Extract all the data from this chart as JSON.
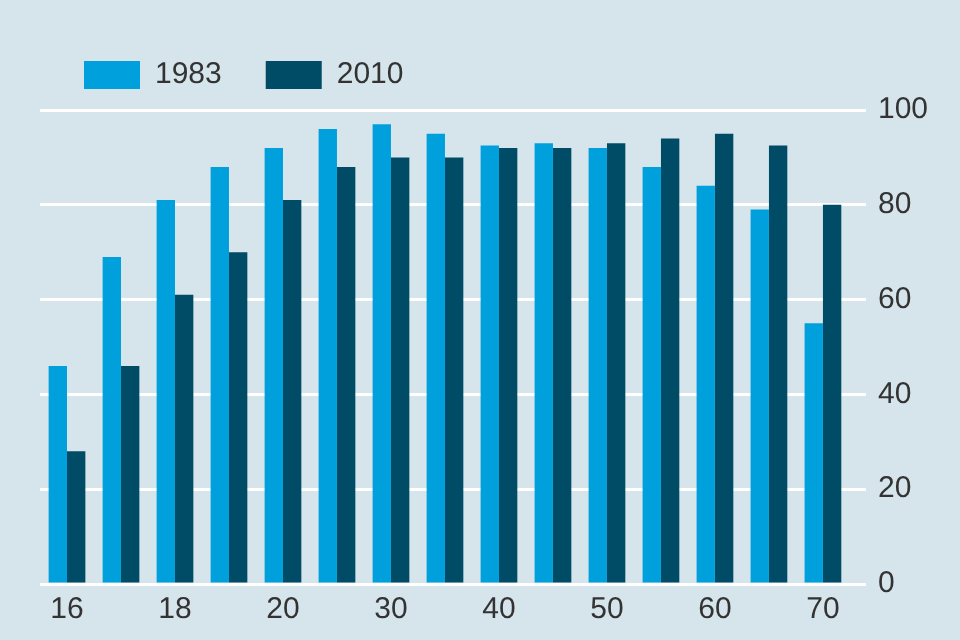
{
  "chart_data": {
    "type": "bar",
    "categories": [
      "16",
      null,
      "18",
      null,
      "20",
      null,
      "30",
      null,
      "40",
      null,
      "50",
      null,
      "60",
      null,
      "70"
    ],
    "series": [
      {
        "name": "1983",
        "color": "#00a0dc",
        "values": [
          46,
          69,
          81,
          88,
          92,
          96,
          97,
          95,
          92.5,
          93,
          92,
          88,
          84,
          79,
          55
        ]
      },
      {
        "name": "2010",
        "color": "#004b66",
        "values": [
          28,
          46,
          61,
          70,
          81,
          88,
          90,
          90,
          92,
          92,
          93,
          94,
          95,
          92.5,
          80
        ]
      }
    ],
    "ylim": [
      0,
      100
    ],
    "yticks": [
      0,
      20,
      40,
      60,
      80,
      100
    ],
    "grid": "y",
    "legend": "top left"
  }
}
